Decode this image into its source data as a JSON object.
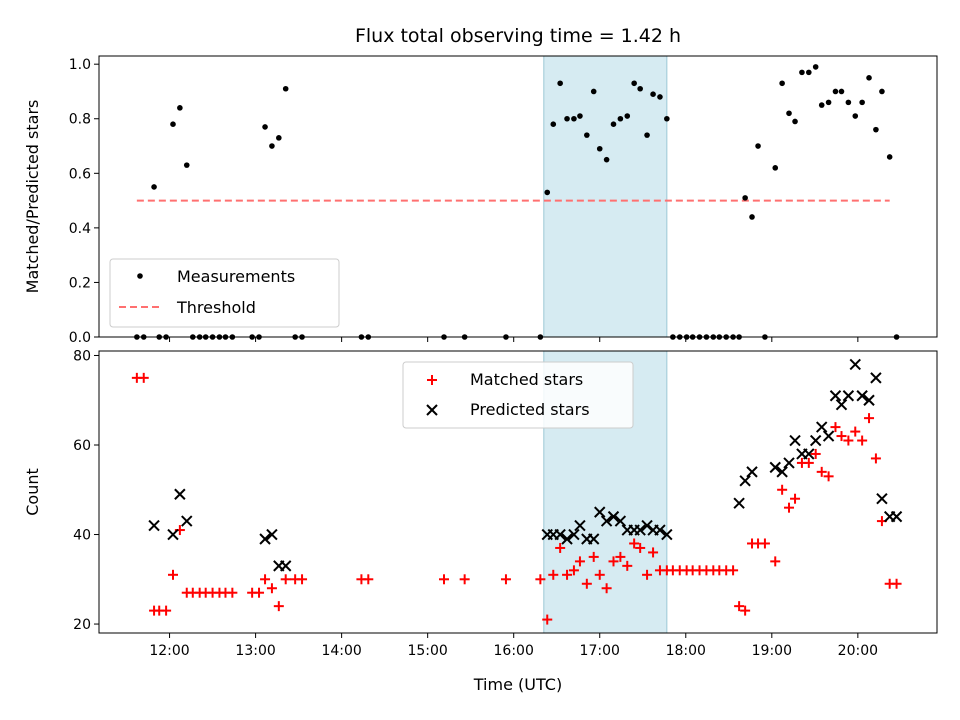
{
  "chart_data": [
    {
      "type": "scatter",
      "title": "Flux total observing time = 1.42 h",
      "xlabel": "",
      "ylabel": "Matched/Predicted stars",
      "xlim": [
        11.18,
        20.92
      ],
      "ylim": [
        0.0,
        1.03
      ],
      "yticks": [
        0.0,
        0.2,
        0.4,
        0.6,
        0.8,
        1.0
      ],
      "ytick_labels": [
        "0.0",
        "0.2",
        "0.4",
        "0.6",
        "0.8",
        "1.0"
      ],
      "xticks": [
        12,
        13,
        14,
        15,
        16,
        17,
        18,
        19,
        20
      ],
      "shaded_span": [
        16.35,
        17.78
      ],
      "legend": {
        "position": "lower-left",
        "entries": [
          "Measurements",
          "Threshold"
        ]
      },
      "series": [
        {
          "name": "Measurements",
          "marker": "dot",
          "color": "#000000",
          "x": [
            11.62,
            11.7,
            11.82,
            11.88,
            11.96,
            12.04,
            12.12,
            12.2,
            12.27,
            12.35,
            12.42,
            12.5,
            12.58,
            12.65,
            12.73,
            12.96,
            13.04,
            13.11,
            13.19,
            13.27,
            13.35,
            13.46,
            13.54,
            14.23,
            14.31,
            15.19,
            15.43,
            15.91,
            16.31,
            16.39,
            16.46,
            16.54,
            16.62,
            16.7,
            16.77,
            16.85,
            16.93,
            17.0,
            17.08,
            17.16,
            17.24,
            17.32,
            17.4,
            17.47,
            17.55,
            17.62,
            17.7,
            17.78,
            17.85,
            17.93,
            18.01,
            18.08,
            18.16,
            18.24,
            18.32,
            18.39,
            18.47,
            18.55,
            18.62,
            18.69,
            18.77,
            18.84,
            18.92,
            19.04,
            19.12,
            19.2,
            19.27,
            19.35,
            19.43,
            19.51,
            19.58,
            19.66,
            19.74,
            19.81,
            19.89,
            19.97,
            20.05,
            20.13,
            20.21,
            20.28,
            20.37,
            20.45
          ],
          "y": [
            0.0,
            0.0,
            0.55,
            0.0,
            0.0,
            0.78,
            0.84,
            0.63,
            0.0,
            0.0,
            0.0,
            0.0,
            0.0,
            0.0,
            0.0,
            0.0,
            0.0,
            0.77,
            0.7,
            0.73,
            0.91,
            0.0,
            0.0,
            0.0,
            0.0,
            0.0,
            0.0,
            0.0,
            0.0,
            0.53,
            0.78,
            0.93,
            0.8,
            0.8,
            0.81,
            0.74,
            0.9,
            0.69,
            0.65,
            0.78,
            0.8,
            0.81,
            0.93,
            0.91,
            0.74,
            0.89,
            0.88,
            0.8,
            0.0,
            0.0,
            0.0,
            0.0,
            0.0,
            0.0,
            0.0,
            0.0,
            0.0,
            0.0,
            0.0,
            0.51,
            0.44,
            0.7,
            0.0,
            0.62,
            0.93,
            0.82,
            0.79,
            0.97,
            0.97,
            0.99,
            0.85,
            0.86,
            0.9,
            0.9,
            0.86,
            0.81,
            0.86,
            0.95,
            0.76,
            0.9,
            0.66,
            0.0
          ]
        },
        {
          "name": "Threshold",
          "style": "dashed",
          "color": "#ff7070",
          "x": [
            11.62,
            20.37
          ],
          "y": [
            0.5,
            0.5
          ]
        }
      ]
    },
    {
      "type": "scatter",
      "title": "",
      "xlabel": "Time (UTC)",
      "ylabel": "Count",
      "xlim": [
        11.18,
        20.92
      ],
      "ylim": [
        18,
        81
      ],
      "yticks": [
        20,
        40,
        60,
        80
      ],
      "ytick_labels": [
        "20",
        "40",
        "60",
        "80"
      ],
      "xticks": [
        12,
        13,
        14,
        15,
        16,
        17,
        18,
        19,
        20
      ],
      "xtick_labels": [
        "12:00",
        "13:00",
        "14:00",
        "15:00",
        "16:00",
        "17:00",
        "18:00",
        "19:00",
        "20:00"
      ],
      "shaded_span": [
        16.35,
        17.78
      ],
      "legend": {
        "position": "upper-center",
        "entries": [
          "Matched stars",
          "Predicted stars"
        ]
      },
      "series": [
        {
          "name": "Matched stars",
          "marker": "plus",
          "color": "#ff0000",
          "x": [
            11.62,
            11.7,
            11.82,
            11.88,
            11.96,
            12.04,
            12.12,
            12.2,
            12.27,
            12.35,
            12.42,
            12.5,
            12.58,
            12.65,
            12.73,
            12.96,
            13.04,
            13.11,
            13.19,
            13.27,
            13.35,
            13.46,
            13.54,
            14.23,
            14.31,
            15.19,
            15.43,
            15.91,
            16.31,
            16.39,
            16.46,
            16.54,
            16.62,
            16.7,
            16.77,
            16.85,
            16.93,
            17.0,
            17.08,
            17.16,
            17.24,
            17.32,
            17.4,
            17.47,
            17.55,
            17.62,
            17.7,
            17.78,
            17.85,
            17.93,
            18.01,
            18.08,
            18.16,
            18.24,
            18.32,
            18.39,
            18.47,
            18.55,
            18.62,
            18.69,
            18.77,
            18.84,
            18.92,
            19.04,
            19.12,
            19.2,
            19.27,
            19.35,
            19.43,
            19.51,
            19.58,
            19.66,
            19.74,
            19.81,
            19.89,
            19.97,
            20.05,
            20.13,
            20.21,
            20.28,
            20.37,
            20.45
          ],
          "y": [
            75,
            75,
            23,
            23,
            23,
            31,
            41,
            27,
            27,
            27,
            27,
            27,
            27,
            27,
            27,
            27,
            27,
            30,
            28,
            24,
            30,
            30,
            30,
            30,
            30,
            30,
            30,
            30,
            30,
            21,
            31,
            37,
            31,
            32,
            34,
            29,
            35,
            31,
            28,
            34,
            35,
            33,
            38,
            37,
            31,
            36,
            32,
            32,
            32,
            32,
            32,
            32,
            32,
            32,
            32,
            32,
            32,
            32,
            24,
            23,
            38,
            38,
            38,
            34,
            50,
            46,
            48,
            56,
            56,
            58,
            54,
            53,
            64,
            62,
            61,
            63,
            61,
            66,
            57,
            43,
            29,
            29
          ]
        },
        {
          "name": "Predicted stars",
          "marker": "x",
          "color": "#000000",
          "x": [
            11.82,
            12.04,
            12.12,
            12.2,
            13.11,
            13.19,
            13.27,
            13.35,
            16.39,
            16.46,
            16.54,
            16.62,
            16.7,
            16.77,
            16.85,
            16.93,
            17.0,
            17.08,
            17.16,
            17.24,
            17.32,
            17.4,
            17.47,
            17.55,
            17.62,
            17.7,
            17.78,
            18.62,
            18.69,
            18.77,
            19.04,
            19.12,
            19.2,
            19.27,
            19.35,
            19.43,
            19.51,
            19.58,
            19.66,
            19.74,
            19.81,
            19.89,
            19.97,
            20.05,
            20.13,
            20.21,
            20.28,
            20.37,
            20.45
          ],
          "y": [
            42,
            40,
            49,
            43,
            39,
            40,
            33,
            33,
            40,
            40,
            40,
            39,
            40,
            42,
            39,
            39,
            45,
            43,
            44,
            43,
            41,
            41,
            41,
            42,
            41,
            41,
            40,
            47,
            52,
            54,
            55,
            54,
            56,
            61,
            58,
            58,
            61,
            64,
            62,
            71,
            69,
            71,
            78,
            71,
            70,
            75,
            48,
            44,
            44
          ]
        }
      ]
    }
  ]
}
